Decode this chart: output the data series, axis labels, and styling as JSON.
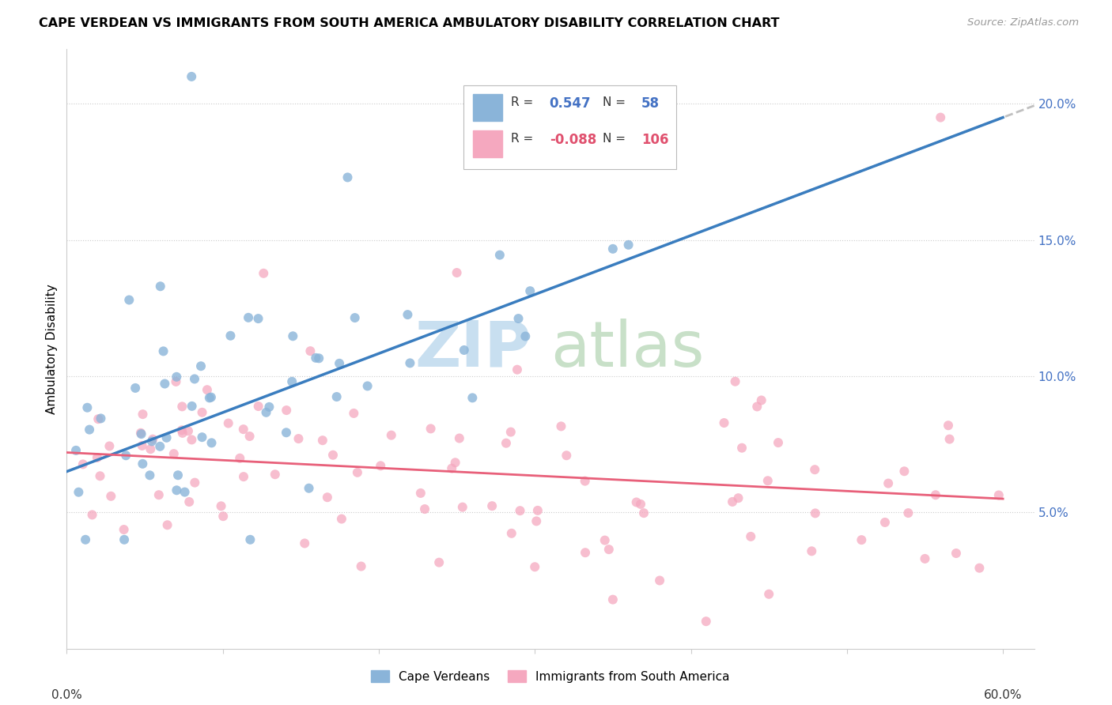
{
  "title": "CAPE VERDEAN VS IMMIGRANTS FROM SOUTH AMERICA AMBULATORY DISABILITY CORRELATION CHART",
  "source": "Source: ZipAtlas.com",
  "ylabel": "Ambulatory Disability",
  "xlim": [
    0.0,
    0.62
  ],
  "ylim": [
    0.0,
    0.22
  ],
  "yticks": [
    0.05,
    0.1,
    0.15,
    0.2
  ],
  "ytick_labels": [
    "5.0%",
    "10.0%",
    "15.0%",
    "20.0%"
  ],
  "xticks": [
    0.0,
    0.1,
    0.2,
    0.3,
    0.4,
    0.5,
    0.6
  ],
  "blue_R": 0.547,
  "blue_N": 58,
  "pink_R": -0.088,
  "pink_N": 106,
  "blue_color": "#8ab4d9",
  "pink_color": "#f5a8bf",
  "trendline_blue_color": "#3a7dbf",
  "trendline_pink_color": "#e8607a",
  "trendline_gray_color": "#c0c0c0",
  "legend_label_blue": "Cape Verdeans",
  "legend_label_pink": "Immigrants from South America",
  "blue_trend_x0": 0.0,
  "blue_trend_y0": 0.065,
  "blue_trend_x1": 0.6,
  "blue_trend_y1": 0.195,
  "pink_trend_x0": 0.0,
  "pink_trend_y0": 0.072,
  "pink_trend_x1": 0.6,
  "pink_trend_y1": 0.055,
  "gray_trend_x0": 0.42,
  "gray_trend_x1": 0.62,
  "watermark_zip_color": "#c8dff0",
  "watermark_atlas_color": "#c8e0c8"
}
